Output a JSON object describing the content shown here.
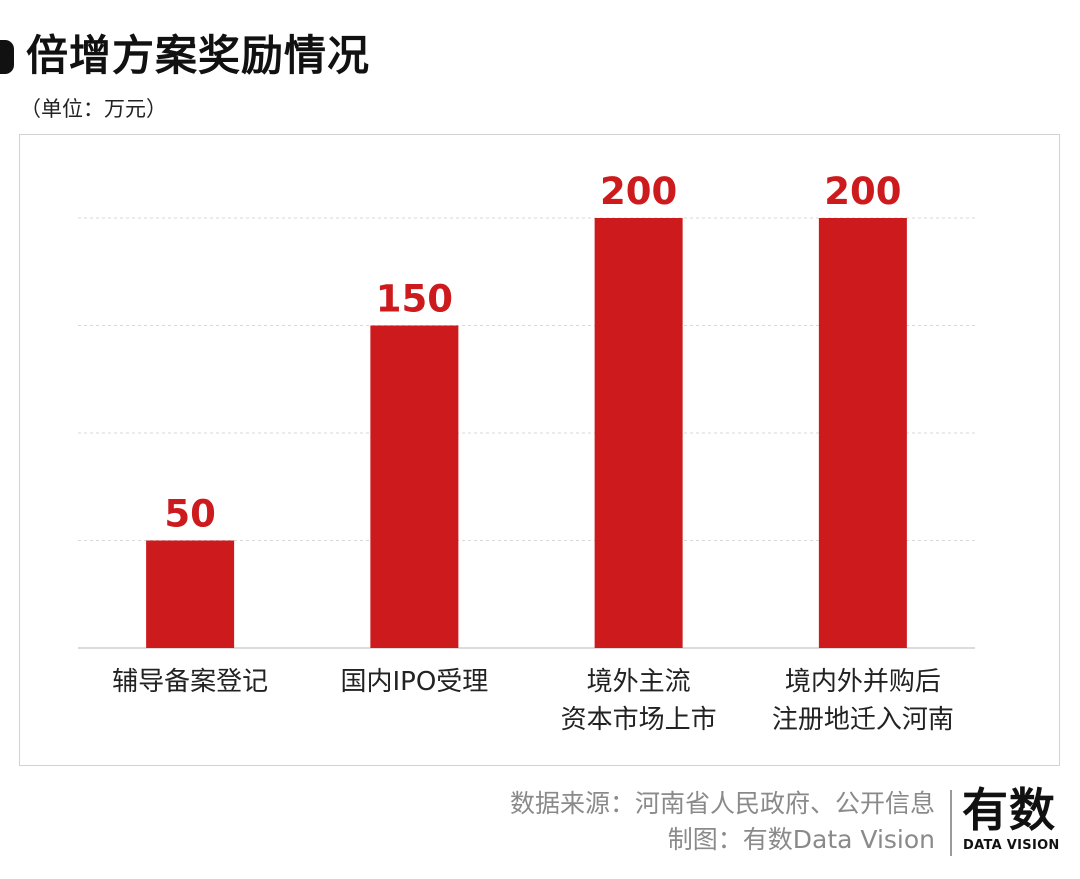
{
  "header": {
    "title": "倍增方案奖励情况",
    "unit": "（单位：万元）"
  },
  "chart_data": {
    "type": "bar",
    "title": "倍增方案奖励情况",
    "unit": "万元",
    "categories": [
      [
        "辅导备案登记"
      ],
      [
        "国内IPO受理"
      ],
      [
        "境外主流",
        "资本市场上市"
      ],
      [
        "境内外并购后",
        "注册地迁入河南"
      ]
    ],
    "values": [
      50,
      150,
      200,
      200
    ],
    "value_labels": [
      "50",
      "150",
      "200",
      "200"
    ],
    "ylim": [
      0,
      200
    ],
    "grid": true,
    "bar_color": "#cc1a1d",
    "label_color": "#cc1a1d"
  },
  "footer": {
    "source": "数据来源：河南省人民政府、公开信息",
    "credit": "制图：有数Data Vision"
  },
  "logo": {
    "main": "有数",
    "sub": "DATA VISION"
  }
}
